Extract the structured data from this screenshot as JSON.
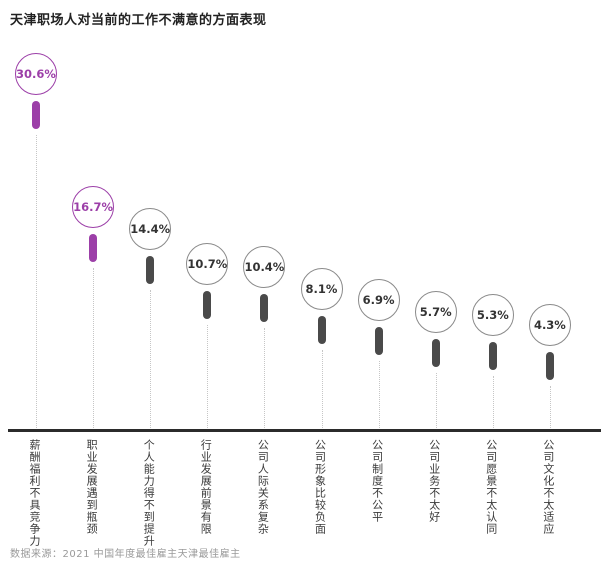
{
  "chart_data": {
    "type": "bar",
    "variant": "lollipop",
    "title": "天津职场人对当前的工作不满意的方面表现",
    "categories": [
      "薪酬福利不具竞争力",
      "职业发展遇到瓶颈",
      "个人能力得不到提升",
      "行业发展前景有限",
      "公司人际关系复杂",
      "公司形象比较负面",
      "公司制度不公平",
      "公司业务不太好",
      "公司愿景不太认同",
      "公司文化不太适应"
    ],
    "values": [
      30.6,
      16.7,
      14.4,
      10.7,
      10.4,
      8.1,
      6.9,
      5.7,
      5.3,
      4.3
    ],
    "value_labels": [
      "30.6%",
      "16.7%",
      "14.4%",
      "10.7%",
      "10.4%",
      "8.1%",
      "6.9%",
      "5.7%",
      "5.3%",
      "4.3%"
    ],
    "highlight_indices": [
      0,
      1
    ],
    "colors": {
      "highlight": "#9C3FA8",
      "default": "#4A4A4A",
      "circle_stroke": "#8a8a8a",
      "value_text": "#333333",
      "dotted_line": "#c6c6c6",
      "baseline": "#2b2b2b"
    },
    "xlabel": "",
    "ylabel": "",
    "ylim": [
      0,
      32
    ],
    "grid": "vertical-dotted-guides",
    "legend": "none",
    "source": "数据来源：2021 中国年度最佳雇主天津最佳雇主"
  }
}
